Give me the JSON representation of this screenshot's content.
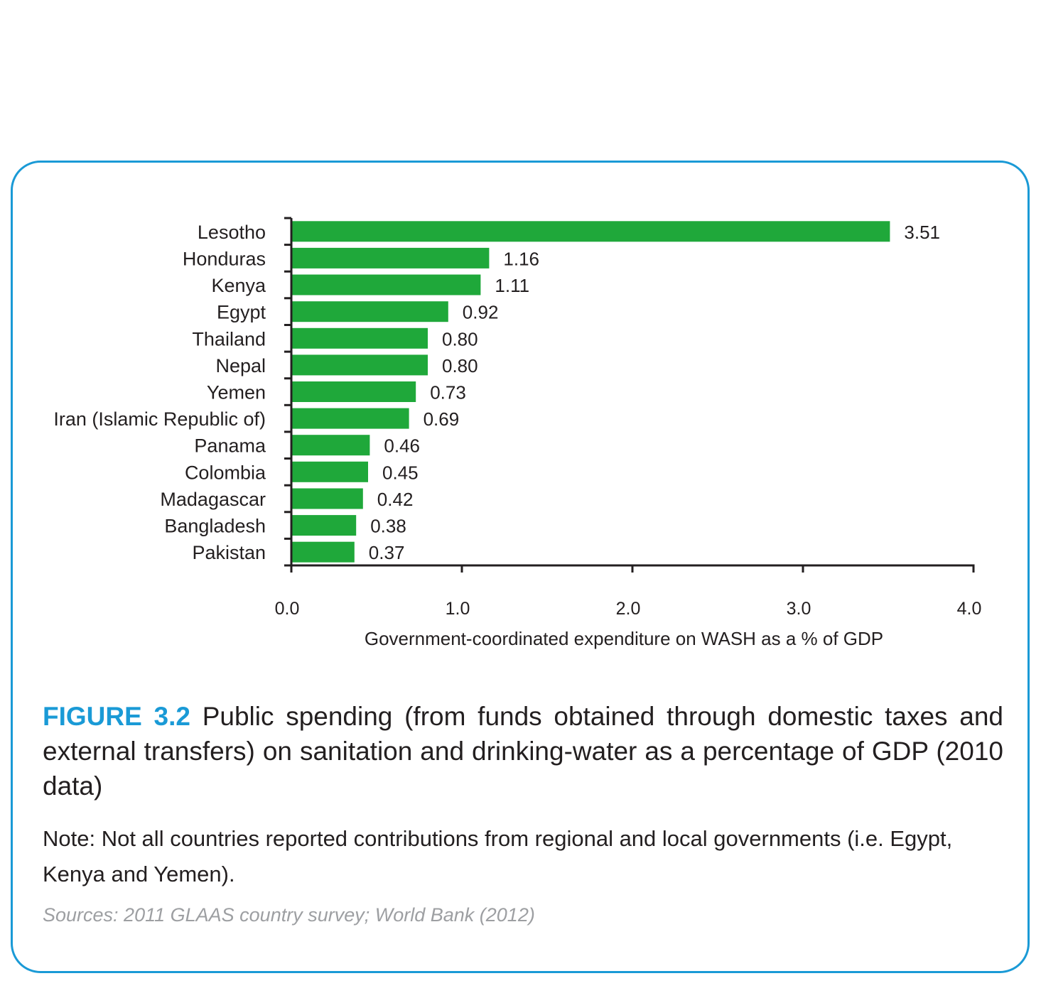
{
  "chart_data": {
    "type": "bar",
    "orientation": "horizontal",
    "categories": [
      "Lesotho",
      "Honduras",
      "Kenya",
      "Egypt",
      "Thailand",
      "Nepal",
      "Yemen",
      "Iran (Islamic Republic of)",
      "Panama",
      "Colombia",
      "Madagascar",
      "Bangladesh",
      "Pakistan"
    ],
    "values": [
      3.51,
      1.16,
      1.11,
      0.92,
      0.8,
      0.8,
      0.73,
      0.69,
      0.46,
      0.45,
      0.42,
      0.38,
      0.37
    ],
    "value_labels": [
      "3.51",
      "1.16",
      "1.11",
      "0.92",
      "0.80",
      "0.80",
      "0.73",
      "0.69",
      "0.46",
      "0.45",
      "0.42",
      "0.38",
      "0.37"
    ],
    "xlabel": "Government-coordinated expenditure on WASH as a % of GDP",
    "ylabel": "",
    "xlim": [
      0,
      4
    ],
    "xticks": [
      0,
      1,
      2,
      3,
      4
    ],
    "xtick_labels": [
      "0.0",
      "1.0",
      "2.0",
      "3.0",
      "4.0"
    ],
    "grid": false,
    "legend": "none",
    "bar_color": "#1fa83a",
    "axis_color": "#231f20"
  },
  "caption": {
    "label": "FIGURE 3.2",
    "text": "Public spending (from funds obtained through domestic taxes and external transfers) on sanitation and drinking-water as a percentage of GDP (2010 data)",
    "label_color": "#1a9ad6"
  },
  "note": "Note: Not all countries reported contributions from regional and local governments (i.e. Egypt, Kenya and Yemen).",
  "sources": "Sources: 2011 GLAAS country survey; World Bank (2012)",
  "frame_color": "#1a9ad6"
}
